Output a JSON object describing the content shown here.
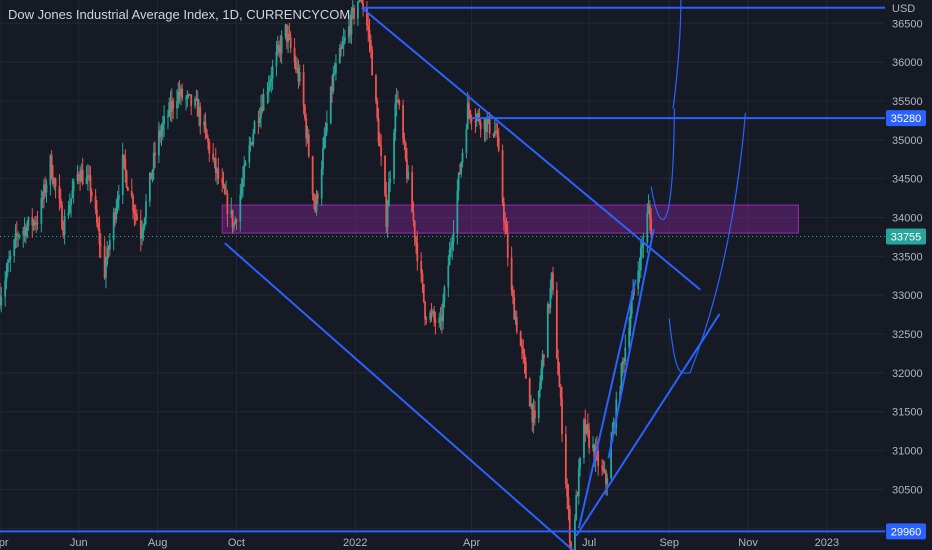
{
  "title": "Dow Jones Industrial Average Index, 1D, CURRENCYCOM",
  "colors": {
    "background": "#161a25",
    "grid": "#232733",
    "up": "#26a69a",
    "down": "#ef5350",
    "line": "#2962ff",
    "zone_fill": "#9c27b0",
    "price_label": "#2962ff",
    "current_label": "#26a69a"
  },
  "chart_data": {
    "type": "candlestick",
    "title": "Dow Jones Industrial Average Index, 1D, CURRENCYCOM",
    "y_unit": "USD",
    "ylim": [
      29720,
      36800
    ],
    "x_range": [
      "2021-04-01",
      "2023-02-15"
    ],
    "x_ticks": [
      {
        "date": "2021-04-01",
        "label": "Apr"
      },
      {
        "date": "2021-06-01",
        "label": "Jun"
      },
      {
        "date": "2021-08-01",
        "label": "Aug"
      },
      {
        "date": "2021-10-01",
        "label": "Oct"
      },
      {
        "date": "2022-01-01",
        "label": "2022"
      },
      {
        "date": "2022-04-01",
        "label": "Apr"
      },
      {
        "date": "2022-07-01",
        "label": "Jul"
      },
      {
        "date": "2022-09-01",
        "label": "Sep"
      },
      {
        "date": "2022-11-01",
        "label": "Nov"
      },
      {
        "date": "2023-01-01",
        "label": "2023"
      }
    ],
    "y_ticks": [
      30000,
      30500,
      31000,
      31500,
      32000,
      32500,
      33000,
      33500,
      34000,
      34500,
      35000,
      35500,
      36000,
      36500
    ],
    "grid": true,
    "price_path": [
      [
        "2021-04-01",
        33000
      ],
      [
        "2021-04-15",
        33800
      ],
      [
        "2021-05-01",
        34000
      ],
      [
        "2021-05-10",
        34700
      ],
      [
        "2021-05-20",
        33900
      ],
      [
        "2021-06-01",
        34600
      ],
      [
        "2021-06-10",
        34400
      ],
      [
        "2021-06-21",
        33300
      ],
      [
        "2021-07-05",
        34700
      ],
      [
        "2021-07-19",
        33800
      ],
      [
        "2021-08-01",
        35000
      ],
      [
        "2021-08-16",
        35600
      ],
      [
        "2021-09-01",
        35400
      ],
      [
        "2021-09-15",
        34600
      ],
      [
        "2021-09-29",
        33900
      ],
      [
        "2021-10-15",
        35200
      ],
      [
        "2021-11-08",
        36400
      ],
      [
        "2021-11-20",
        35700
      ],
      [
        "2021-12-01",
        34100
      ],
      [
        "2021-12-15",
        35800
      ],
      [
        "2022-01-05",
        36900
      ],
      [
        "2022-01-12",
        36300
      ],
      [
        "2022-01-25",
        34000
      ],
      [
        "2022-02-02",
        35600
      ],
      [
        "2022-02-24",
        32800
      ],
      [
        "2022-03-08",
        32600
      ],
      [
        "2022-03-29",
        35400
      ],
      [
        "2022-04-20",
        35100
      ],
      [
        "2022-05-02",
        33000
      ],
      [
        "2022-05-20",
        31300
      ],
      [
        "2022-06-02",
        33200
      ],
      [
        "2022-06-17",
        29700
      ],
      [
        "2022-06-27",
        31300
      ],
      [
        "2022-07-14",
        30600
      ],
      [
        "2022-08-01",
        32700
      ],
      [
        "2022-08-16",
        34100
      ],
      [
        "2022-08-19",
        33755
      ]
    ],
    "levels": {
      "current": 33755,
      "resistance": 35280,
      "support": 29960,
      "top_line": 36700
    },
    "zone": {
      "from": "2021-09-20",
      "to": "2022-12-10",
      "low": 33800,
      "high": 34160
    },
    "trendlines": [
      {
        "from": [
          "2022-01-06",
          36700
        ],
        "to": [
          "2022-09-25",
          33070
        ]
      },
      {
        "from": [
          "2021-09-22",
          33670
        ],
        "to": [
          "2022-07-12",
          29370
        ]
      },
      {
        "from": [
          "2022-06-21",
          29900
        ],
        "to": [
          "2022-10-10",
          32760
        ]
      },
      {
        "from": [
          "2022-07-16",
          30900
        ],
        "to": [
          "2022-08-20",
          33850
        ]
      },
      {
        "from": [
          "2022-06-23",
          30000
        ],
        "to": [
          "2022-08-06",
          33200
        ]
      }
    ],
    "price_labels": [
      "36500",
      "36000",
      "35500",
      "35000",
      "34500",
      "34000",
      "33500",
      "33000",
      "32500",
      "32000",
      "31500",
      "31000",
      "30500",
      "30000"
    ],
    "value_labels": {
      "current": "33755",
      "resistance": "35280",
      "support": "29960",
      "unit": "USD"
    }
  }
}
